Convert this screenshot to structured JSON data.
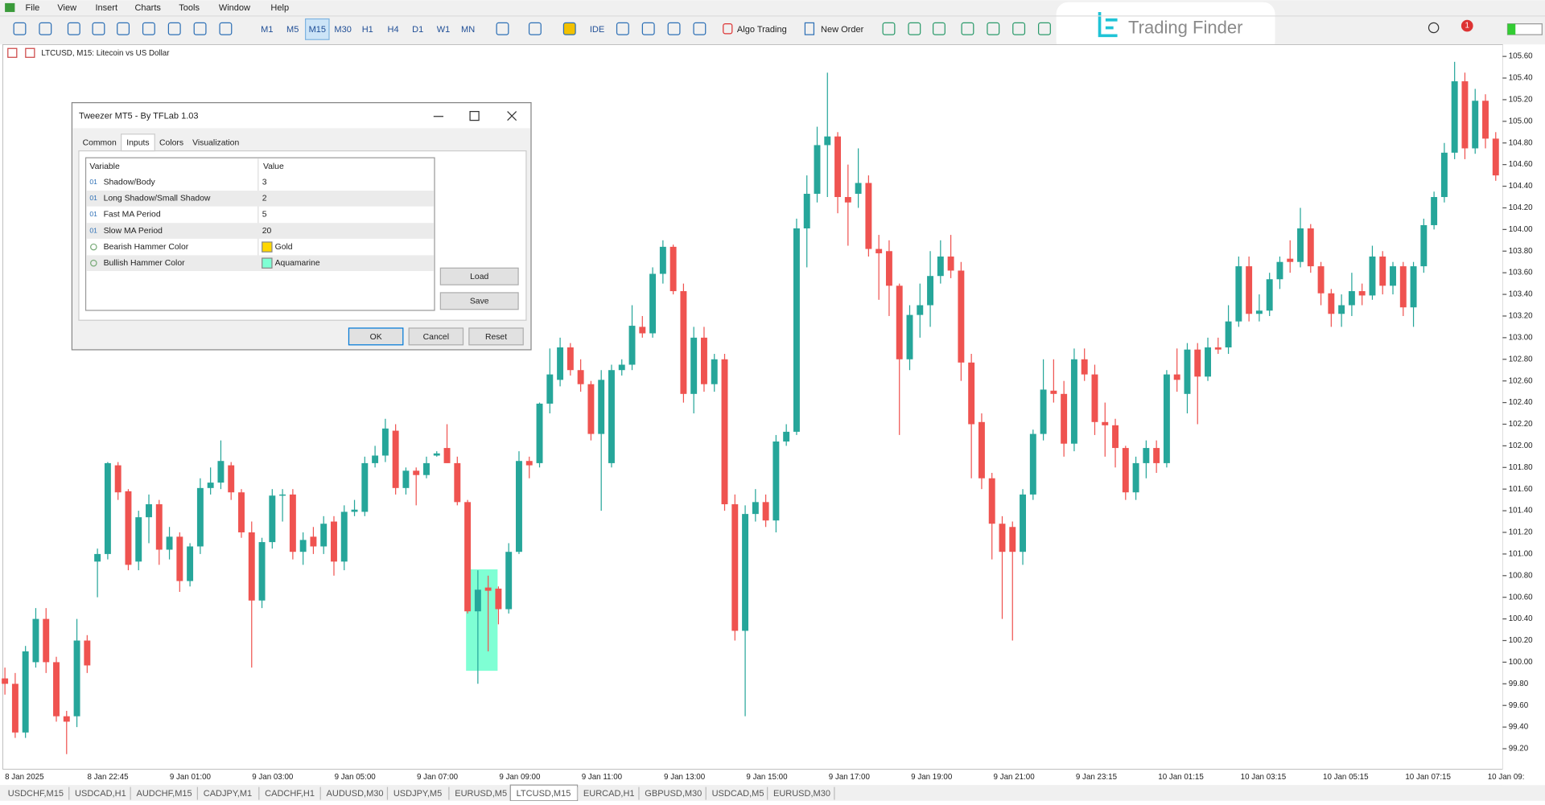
{
  "menu": [
    "File",
    "View",
    "Insert",
    "Charts",
    "Tools",
    "Window",
    "Help"
  ],
  "toolbar": {
    "timeframes": [
      "M1",
      "M5",
      "M15",
      "M30",
      "H1",
      "H4",
      "D1",
      "W1",
      "MN"
    ],
    "ide": "IDE",
    "algo_trading": "Algo Trading",
    "new_order": "New Order",
    "notification_count": 1
  },
  "logo": "Trading Finder",
  "chart_data": {
    "type": "candlestick",
    "title": "LTCUSD, M15:  Litecoin vs US Dollar",
    "up_color": "#26a69a",
    "down_color": "#ef5350",
    "candles": [
      [
        99.85,
        99.95,
        99.7,
        99.8
      ],
      [
        99.8,
        99.9,
        99.3,
        99.35
      ],
      [
        99.35,
        100.15,
        99.3,
        100.1
      ],
      [
        100.0,
        100.5,
        99.95,
        100.4
      ],
      [
        100.4,
        100.5,
        99.9,
        100.0
      ],
      [
        100.0,
        100.05,
        99.45,
        99.5
      ],
      [
        99.5,
        99.55,
        99.15,
        99.45
      ],
      [
        99.5,
        100.4,
        99.4,
        100.2
      ],
      [
        100.2,
        100.25,
        99.9,
        99.97
      ],
      [
        100.93,
        101.05,
        100.6,
        101.0
      ],
      [
        101.0,
        101.85,
        100.95,
        101.84
      ],
      [
        101.82,
        101.85,
        101.5,
        101.57
      ],
      [
        101.58,
        101.6,
        100.85,
        100.9
      ],
      [
        100.93,
        101.4,
        100.85,
        101.34
      ],
      [
        101.34,
        101.55,
        101.1,
        101.46
      ],
      [
        101.46,
        101.5,
        100.9,
        101.04
      ],
      [
        101.04,
        101.25,
        100.95,
        101.16
      ],
      [
        101.16,
        101.2,
        100.65,
        100.75
      ],
      [
        100.75,
        101.1,
        100.7,
        101.07
      ],
      [
        101.07,
        101.7,
        101.0,
        101.61
      ],
      [
        101.61,
        101.8,
        101.55,
        101.66
      ],
      [
        101.66,
        102.05,
        101.6,
        101.86
      ],
      [
        101.82,
        101.85,
        101.5,
        101.57
      ],
      [
        101.57,
        101.6,
        101.15,
        101.2
      ],
      [
        101.2,
        101.3,
        99.95,
        100.57
      ],
      [
        100.57,
        101.15,
        100.5,
        101.11
      ],
      [
        101.11,
        101.6,
        101.05,
        101.54
      ],
      [
        101.54,
        101.6,
        101.3,
        101.55
      ],
      [
        101.55,
        101.6,
        100.95,
        101.02
      ],
      [
        101.02,
        101.2,
        100.9,
        101.13
      ],
      [
        101.16,
        101.25,
        101.0,
        101.07
      ],
      [
        101.07,
        101.35,
        101.0,
        101.28
      ],
      [
        101.3,
        101.35,
        100.8,
        100.93
      ],
      [
        100.93,
        101.45,
        100.85,
        101.39
      ],
      [
        101.39,
        101.5,
        101.35,
        101.41
      ],
      [
        101.39,
        101.9,
        101.35,
        101.84
      ],
      [
        101.84,
        102.0,
        101.8,
        101.91
      ],
      [
        101.91,
        102.25,
        101.85,
        102.16
      ],
      [
        102.14,
        102.2,
        101.55,
        101.61
      ],
      [
        101.61,
        101.8,
        101.55,
        101.77
      ],
      [
        101.77,
        101.8,
        101.45,
        101.73
      ],
      [
        101.73,
        101.9,
        101.7,
        101.84
      ],
      [
        101.91,
        101.95,
        101.9,
        101.93
      ],
      [
        101.98,
        102.2,
        101.84,
        101.84
      ],
      [
        101.84,
        101.9,
        101.45,
        101.48
      ],
      [
        101.48,
        101.5,
        100.45,
        100.47
      ],
      [
        100.47,
        100.85,
        99.8,
        100.67
      ],
      [
        100.69,
        100.8,
        100.1,
        100.66
      ],
      [
        100.68,
        100.7,
        100.35,
        100.49
      ],
      [
        100.49,
        101.1,
        100.45,
        101.02
      ],
      [
        101.02,
        101.95,
        101.0,
        101.86
      ],
      [
        101.86,
        101.9,
        101.7,
        101.82
      ],
      [
        101.84,
        102.4,
        101.8,
        102.39
      ],
      [
        102.39,
        102.9,
        102.3,
        102.66
      ],
      [
        102.61,
        103.0,
        102.55,
        102.91
      ],
      [
        102.91,
        102.95,
        102.65,
        102.7
      ],
      [
        102.7,
        102.8,
        102.5,
        102.57
      ],
      [
        102.57,
        102.6,
        102.05,
        102.11
      ],
      [
        102.11,
        102.7,
        101.4,
        102.61
      ],
      [
        101.84,
        102.75,
        101.8,
        102.7
      ],
      [
        102.7,
        102.8,
        102.65,
        102.75
      ],
      [
        102.75,
        103.3,
        102.7,
        103.11
      ],
      [
        103.1,
        103.2,
        103.0,
        103.04
      ],
      [
        103.04,
        103.65,
        103.0,
        103.59
      ],
      [
        103.59,
        103.9,
        103.5,
        103.84
      ],
      [
        103.84,
        103.86,
        103.4,
        103.43
      ],
      [
        103.43,
        103.5,
        102.4,
        102.48
      ],
      [
        102.48,
        103.1,
        102.3,
        103.0
      ],
      [
        103.0,
        103.1,
        102.5,
        102.57
      ],
      [
        102.57,
        102.85,
        102.5,
        102.8
      ],
      [
        102.8,
        102.85,
        101.4,
        101.46
      ],
      [
        101.46,
        101.55,
        100.2,
        100.29
      ],
      [
        100.29,
        101.45,
        99.5,
        101.37
      ],
      [
        101.37,
        101.6,
        101.3,
        101.48
      ],
      [
        101.48,
        101.55,
        101.25,
        101.31
      ],
      [
        101.31,
        102.1,
        101.2,
        102.04
      ],
      [
        102.04,
        102.2,
        102.0,
        102.13
      ],
      [
        102.13,
        104.1,
        102.1,
        104.01
      ],
      [
        104.01,
        104.5,
        103.65,
        104.33
      ],
      [
        104.33,
        104.95,
        104.25,
        104.78
      ],
      [
        104.78,
        105.45,
        104.3,
        104.86
      ],
      [
        104.86,
        104.9,
        104.15,
        104.3
      ],
      [
        104.3,
        104.6,
        103.85,
        104.25
      ],
      [
        104.33,
        104.75,
        104.2,
        104.43
      ],
      [
        104.43,
        104.5,
        103.75,
        103.82
      ],
      [
        103.82,
        103.95,
        103.35,
        103.78
      ],
      [
        103.8,
        103.9,
        103.2,
        103.48
      ],
      [
        103.48,
        103.5,
        102.1,
        102.8
      ],
      [
        102.8,
        103.3,
        102.7,
        103.21
      ],
      [
        103.21,
        103.5,
        103.0,
        103.3
      ],
      [
        103.3,
        103.8,
        103.1,
        103.57
      ],
      [
        103.57,
        103.9,
        103.5,
        103.75
      ],
      [
        103.75,
        103.95,
        103.55,
        103.62
      ],
      [
        103.62,
        103.7,
        102.6,
        102.77
      ],
      [
        102.77,
        102.85,
        101.7,
        102.2
      ],
      [
        102.22,
        102.3,
        101.6,
        101.7
      ],
      [
        101.7,
        101.75,
        100.95,
        101.28
      ],
      [
        101.28,
        101.35,
        100.4,
        101.02
      ],
      [
        101.25,
        101.3,
        100.2,
        101.02
      ],
      [
        101.02,
        101.6,
        100.9,
        101.55
      ],
      [
        101.55,
        102.15,
        101.5,
        102.11
      ],
      [
        102.11,
        102.8,
        102.05,
        102.52
      ],
      [
        102.51,
        102.8,
        102.4,
        102.48
      ],
      [
        102.48,
        102.6,
        101.9,
        102.02
      ],
      [
        102.02,
        102.9,
        101.95,
        102.8
      ],
      [
        102.8,
        102.9,
        102.6,
        102.66
      ],
      [
        102.66,
        102.75,
        102.1,
        102.22
      ],
      [
        102.22,
        102.4,
        101.9,
        102.19
      ],
      [
        102.19,
        102.25,
        101.8,
        101.98
      ],
      [
        101.98,
        102.0,
        101.5,
        101.57
      ],
      [
        101.57,
        101.9,
        101.5,
        101.84
      ],
      [
        101.84,
        102.05,
        101.7,
        101.98
      ],
      [
        101.98,
        102.05,
        101.75,
        101.84
      ],
      [
        101.84,
        102.7,
        101.8,
        102.66
      ],
      [
        102.66,
        102.9,
        102.5,
        102.61
      ],
      [
        102.48,
        102.95,
        102.3,
        102.89
      ],
      [
        102.89,
        102.95,
        102.2,
        102.64
      ],
      [
        102.64,
        103.0,
        102.6,
        102.91
      ],
      [
        102.91,
        103.0,
        102.85,
        102.89
      ],
      [
        102.91,
        103.3,
        102.85,
        103.15
      ],
      [
        103.15,
        103.75,
        103.1,
        103.66
      ],
      [
        103.66,
        103.75,
        103.15,
        103.22
      ],
      [
        103.22,
        103.4,
        103.15,
        103.25
      ],
      [
        103.25,
        103.6,
        103.2,
        103.54
      ],
      [
        103.54,
        103.75,
        103.45,
        103.7
      ],
      [
        103.73,
        103.9,
        103.6,
        103.7
      ],
      [
        103.7,
        104.2,
        103.65,
        104.01
      ],
      [
        104.01,
        104.05,
        103.6,
        103.66
      ],
      [
        103.66,
        103.7,
        103.3,
        103.41
      ],
      [
        103.41,
        103.45,
        103.1,
        103.22
      ],
      [
        103.22,
        103.4,
        103.1,
        103.3
      ],
      [
        103.3,
        103.6,
        103.2,
        103.43
      ],
      [
        103.43,
        103.5,
        103.3,
        103.39
      ],
      [
        103.39,
        103.85,
        103.35,
        103.75
      ],
      [
        103.75,
        103.8,
        103.4,
        103.48
      ],
      [
        103.48,
        103.7,
        103.4,
        103.66
      ],
      [
        103.66,
        103.7,
        103.2,
        103.28
      ],
      [
        103.28,
        103.7,
        103.1,
        103.66
      ],
      [
        103.66,
        104.1,
        103.6,
        104.04
      ],
      [
        104.04,
        104.35,
        104.0,
        104.3
      ],
      [
        104.3,
        104.8,
        104.25,
        104.71
      ],
      [
        104.71,
        105.55,
        104.65,
        105.37
      ],
      [
        105.37,
        105.45,
        104.65,
        104.75
      ],
      [
        104.75,
        105.3,
        104.7,
        105.19
      ],
      [
        105.19,
        105.25,
        104.75,
        104.84
      ],
      [
        104.84,
        104.9,
        104.45,
        104.5
      ]
    ],
    "ylim": [
      99.01,
      105.71
    ],
    "yticks": [
      {
        "value": 105.6,
        "label": "105.60"
      },
      {
        "value": 105.4,
        "label": "105.40"
      },
      {
        "value": 105.2,
        "label": "105.20"
      },
      {
        "value": 105.0,
        "label": "105.00"
      },
      {
        "value": 104.8,
        "label": "104.80"
      },
      {
        "value": 104.6,
        "label": "104.60"
      },
      {
        "value": 104.4,
        "label": "104.40"
      },
      {
        "value": 104.2,
        "label": "104.20"
      },
      {
        "value": 104.0,
        "label": "104.00"
      },
      {
        "value": 103.8,
        "label": "103.80"
      },
      {
        "value": 103.6,
        "label": "103.60"
      },
      {
        "value": 103.4,
        "label": "103.40"
      },
      {
        "value": 103.2,
        "label": "103.20"
      },
      {
        "value": 103.0,
        "label": "103.00"
      },
      {
        "value": 102.8,
        "label": "102.80"
      },
      {
        "value": 102.6,
        "label": "102.60"
      },
      {
        "value": 102.4,
        "label": "102.40"
      },
      {
        "value": 102.2,
        "label": "102.20"
      },
      {
        "value": 102.0,
        "label": "102.00"
      },
      {
        "value": 101.8,
        "label": "101.80"
      },
      {
        "value": 101.6,
        "label": "101.60"
      },
      {
        "value": 101.4,
        "label": "101.40"
      },
      {
        "value": 101.2,
        "label": "101.20"
      },
      {
        "value": 101.0,
        "label": "101.00"
      },
      {
        "value": 100.8,
        "label": "100.80"
      },
      {
        "value": 100.6,
        "label": "100.60"
      },
      {
        "value": 100.4,
        "label": "100.40"
      },
      {
        "value": 100.2,
        "label": "100.20"
      },
      {
        "value": 100.0,
        "label": "100.00"
      },
      {
        "value": 99.8,
        "label": "99.80"
      },
      {
        "value": 99.6,
        "label": "99.60"
      },
      {
        "value": 99.4,
        "label": "99.40"
      },
      {
        "value": 99.2,
        "label": "99.20"
      }
    ],
    "x_labels": [
      "8 Jan 2025",
      "8 Jan 22:45",
      "9 Jan 01:00",
      "9 Jan 03:00",
      "9 Jan 05:00",
      "9 Jan 07:00",
      "9 Jan 09:00",
      "9 Jan 11:00",
      "9 Jan 13:00",
      "9 Jan 15:00",
      "9 Jan 17:00",
      "9 Jan 19:00",
      "9 Jan 21:00",
      "9 Jan 23:15",
      "10 Jan 01:15",
      "10 Jan 03:15",
      "10 Jan 05:15",
      "10 Jan 07:15",
      "10 Jan 09:"
    ]
  },
  "tabs": [
    "USDCHF,M15",
    "USDCAD,H1",
    "AUDCHF,M15",
    "CADJPY,M1",
    "CADCHF,H1",
    "AUDUSD,M30",
    "USDJPY,M5",
    "EURUSD,M5",
    "LTCUSD,M15",
    "EURCAD,H1",
    "GBPUSD,M30",
    "USDCAD,M5",
    "EURUSD,M30"
  ],
  "dialog": {
    "title": "Tweezer MT5 - By TFLab 1.03",
    "tabs": [
      "Common",
      "Inputs",
      "Colors",
      "Visualization"
    ],
    "table": {
      "headers": [
        "Variable",
        "Value"
      ],
      "rows": [
        [
          "Shadow/Body",
          3
        ],
        [
          "Long Shadow/Small Shadow",
          2
        ],
        [
          "Fast MA Period",
          5
        ],
        [
          "Slow MA Period",
          20
        ],
        [
          "Bearish Hammer Color",
          "Gold"
        ],
        [
          "Bullish Hammer Color",
          "Aquamarine"
        ]
      ]
    },
    "buttons": {
      "load": "Load",
      "save": "Save",
      "ok": "OK",
      "cancel": "Cancel",
      "reset": "Reset"
    }
  }
}
